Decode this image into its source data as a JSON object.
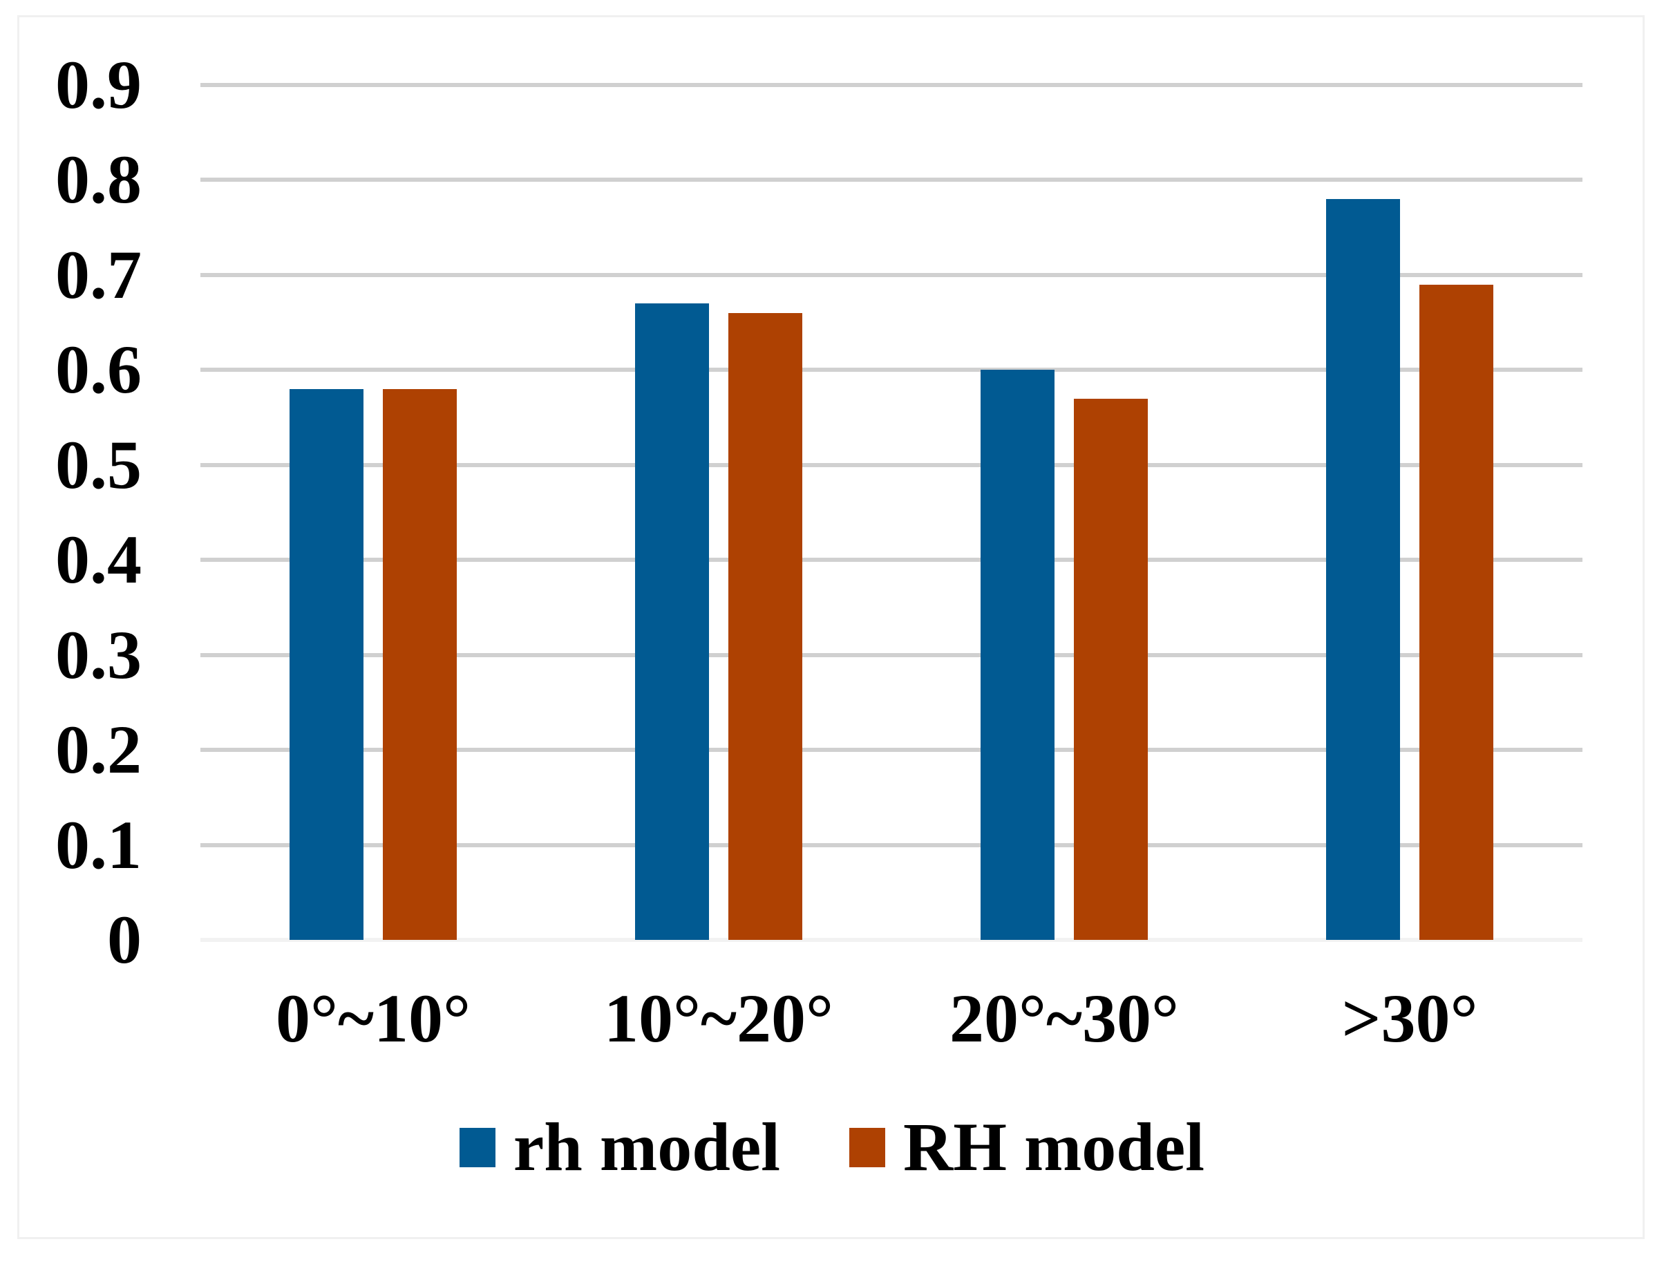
{
  "chart_data": {
    "type": "bar",
    "title": "",
    "xlabel": "",
    "ylabel": "",
    "categories": [
      "0°~10°",
      "10°~20°",
      "20°~30°",
      ">30°"
    ],
    "series": [
      {
        "name": "rh model",
        "color": "#015A92",
        "values": [
          0.58,
          0.67,
          0.6,
          0.78
        ]
      },
      {
        "name": "RH model",
        "color": "#AE4102",
        "values": [
          0.58,
          0.66,
          0.57,
          0.69
        ]
      }
    ],
    "ylim": [
      0,
      0.9
    ],
    "ytick_step": 0.1,
    "yticks": [
      "0.9",
      "0.8",
      "0.7",
      "0.6",
      "0.5",
      "0.4",
      "0.3",
      "0.2",
      "0.1",
      "0"
    ],
    "grid": true,
    "legend_position": "bottom",
    "colors": {
      "gridline": "#D0D0D0",
      "axis_line": "#F2F2F2",
      "frame_border": "#F0F0F0",
      "background": "#FFFFFF",
      "text": "#000000"
    }
  }
}
